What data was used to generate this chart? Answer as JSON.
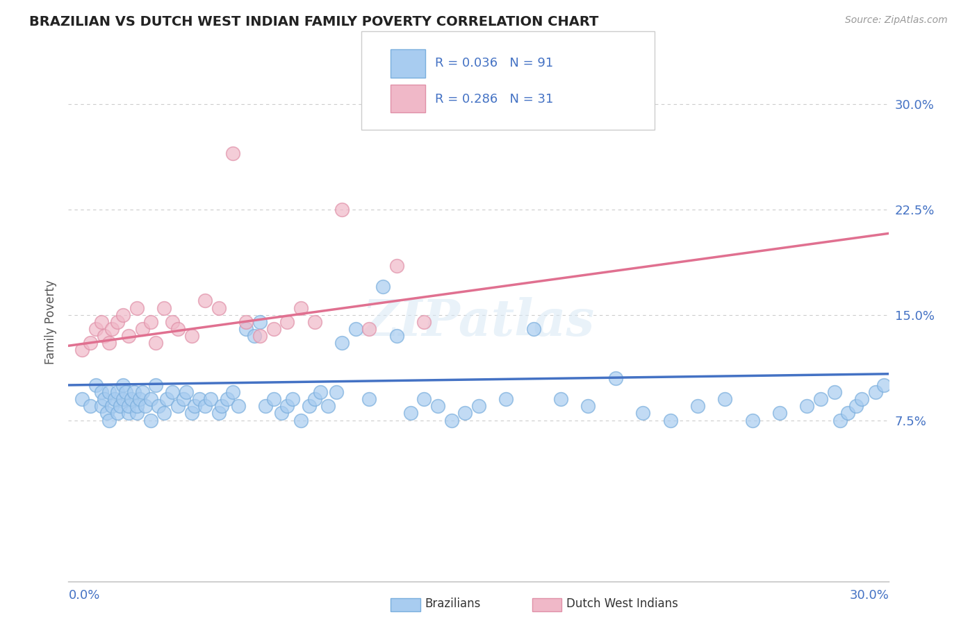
{
  "title": "BRAZILIAN VS DUTCH WEST INDIAN FAMILY POVERTY CORRELATION CHART",
  "source_text": "Source: ZipAtlas.com",
  "ylabel": "Family Poverty",
  "xlim": [
    0.0,
    0.3
  ],
  "ylim": [
    -0.04,
    0.33
  ],
  "legend_r1_val": "0.036",
  "legend_n1_val": "91",
  "legend_r2_val": "0.286",
  "legend_n2_val": "31",
  "color_blue_fill": "#A8CCF0",
  "color_blue_edge": "#7AAEDD",
  "color_blue_line": "#4472C4",
  "color_pink_fill": "#F0B8C8",
  "color_pink_edge": "#E090A8",
  "color_pink_line": "#E07090",
  "color_text_blue": "#4472C4",
  "color_grey_text": "#888888",
  "color_dark_text": "#333333",
  "grid_color": "#CCCCCC",
  "blue_trend": [
    0.0,
    0.1,
    0.3,
    0.108
  ],
  "pink_trend": [
    0.0,
    0.128,
    0.3,
    0.208
  ],
  "blue_x": [
    0.005,
    0.008,
    0.01,
    0.012,
    0.012,
    0.013,
    0.014,
    0.015,
    0.015,
    0.016,
    0.017,
    0.018,
    0.018,
    0.019,
    0.02,
    0.02,
    0.021,
    0.022,
    0.022,
    0.023,
    0.024,
    0.025,
    0.025,
    0.026,
    0.027,
    0.028,
    0.03,
    0.03,
    0.032,
    0.033,
    0.035,
    0.036,
    0.038,
    0.04,
    0.042,
    0.043,
    0.045,
    0.046,
    0.048,
    0.05,
    0.052,
    0.055,
    0.056,
    0.058,
    0.06,
    0.062,
    0.065,
    0.068,
    0.07,
    0.072,
    0.075,
    0.078,
    0.08,
    0.082,
    0.085,
    0.088,
    0.09,
    0.092,
    0.095,
    0.098,
    0.1,
    0.105,
    0.11,
    0.115,
    0.12,
    0.125,
    0.13,
    0.135,
    0.14,
    0.145,
    0.15,
    0.16,
    0.17,
    0.18,
    0.19,
    0.2,
    0.21,
    0.22,
    0.23,
    0.24,
    0.25,
    0.26,
    0.27,
    0.275,
    0.28,
    0.282,
    0.285,
    0.288,
    0.29,
    0.295,
    0.298
  ],
  "blue_y": [
    0.09,
    0.085,
    0.1,
    0.095,
    0.085,
    0.09,
    0.08,
    0.075,
    0.095,
    0.085,
    0.09,
    0.095,
    0.08,
    0.085,
    0.1,
    0.09,
    0.095,
    0.08,
    0.085,
    0.09,
    0.095,
    0.08,
    0.085,
    0.09,
    0.095,
    0.085,
    0.075,
    0.09,
    0.1,
    0.085,
    0.08,
    0.09,
    0.095,
    0.085,
    0.09,
    0.095,
    0.08,
    0.085,
    0.09,
    0.085,
    0.09,
    0.08,
    0.085,
    0.09,
    0.095,
    0.085,
    0.14,
    0.135,
    0.145,
    0.085,
    0.09,
    0.08,
    0.085,
    0.09,
    0.075,
    0.085,
    0.09,
    0.095,
    0.085,
    0.095,
    0.13,
    0.14,
    0.09,
    0.17,
    0.135,
    0.08,
    0.09,
    0.085,
    0.075,
    0.08,
    0.085,
    0.09,
    0.14,
    0.09,
    0.085,
    0.105,
    0.08,
    0.075,
    0.085,
    0.09,
    0.075,
    0.08,
    0.085,
    0.09,
    0.095,
    0.075,
    0.08,
    0.085,
    0.09,
    0.095,
    0.1
  ],
  "pink_x": [
    0.005,
    0.008,
    0.01,
    0.012,
    0.013,
    0.015,
    0.016,
    0.018,
    0.02,
    0.022,
    0.025,
    0.027,
    0.03,
    0.032,
    0.035,
    0.038,
    0.04,
    0.045,
    0.05,
    0.055,
    0.06,
    0.065,
    0.07,
    0.075,
    0.08,
    0.085,
    0.09,
    0.1,
    0.11,
    0.12,
    0.13
  ],
  "pink_y": [
    0.125,
    0.13,
    0.14,
    0.145,
    0.135,
    0.13,
    0.14,
    0.145,
    0.15,
    0.135,
    0.155,
    0.14,
    0.145,
    0.13,
    0.155,
    0.145,
    0.14,
    0.135,
    0.16,
    0.155,
    0.265,
    0.145,
    0.135,
    0.14,
    0.145,
    0.155,
    0.145,
    0.225,
    0.14,
    0.185,
    0.145
  ]
}
